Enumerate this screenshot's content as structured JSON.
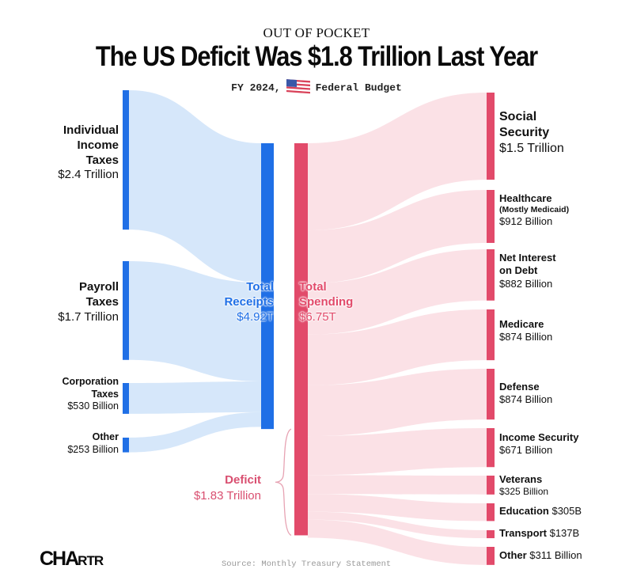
{
  "header": {
    "kicker": "OUT OF POCKET",
    "title": "The US Deficit Was $1.8 Trillion Last Year",
    "subtitle_left": "FY 2024,",
    "flag_icon": "us-flag-icon",
    "subtitle_right": "Federal Budget"
  },
  "footer": {
    "logo_big": "CHA",
    "logo_small": "RTR",
    "source": "Source: Monthly Treasury Statement"
  },
  "colors": {
    "receipts": "#1f6fe6",
    "receipts_flow": "#d6e7fa",
    "spending": "#e24a6a",
    "spending_flow": "#fbe1e6",
    "deficit_text": "#d94f70"
  },
  "chart_data": {
    "type": "sankey",
    "title": "The US Deficit Was $1.8 Trillion Last Year",
    "subtitle": "FY 2024, Federal Budget",
    "units": "billions USD",
    "receipts": {
      "name_lines": [
        "Total",
        "Receipts"
      ],
      "label": "$4.92T",
      "total": 4920,
      "sources": [
        {
          "name_lines": [
            "Individual",
            "Income",
            "Taxes"
          ],
          "label": "$2.4 Trillion",
          "value": 2400
        },
        {
          "name_lines": [
            "Payroll",
            "Taxes"
          ],
          "label": "$1.7 Trillion",
          "value": 1700
        },
        {
          "name_lines": [
            "Corporation",
            "Taxes"
          ],
          "label": "$530 Billion",
          "value": 530
        },
        {
          "name_lines": [
            "Other"
          ],
          "label": "$253 Billion",
          "value": 253
        }
      ]
    },
    "spending": {
      "name_lines": [
        "Total",
        "Spending"
      ],
      "label": "$6.75T",
      "total": 6750,
      "categories": [
        {
          "name_lines": [
            "Social",
            "Security"
          ],
          "label": "$1.5 Trillion",
          "value": 1500,
          "style": "large"
        },
        {
          "name_lines": [
            "Healthcare"
          ],
          "note": "(Mostly Medicaid)",
          "label": "$912 Billion",
          "value": 912
        },
        {
          "name_lines": [
            "Net Interest",
            "on Debt"
          ],
          "label": "$882 Billion",
          "value": 882
        },
        {
          "name_lines": [
            "Medicare"
          ],
          "label": "$874 Billion",
          "value": 874
        },
        {
          "name_lines": [
            "Defense"
          ],
          "label": "$874 Billion",
          "value": 874
        },
        {
          "name_lines": [
            "Income Security"
          ],
          "label": "$671 Billion",
          "value": 671
        },
        {
          "name_lines": [
            "Veterans"
          ],
          "label": "$325 Billion",
          "value": 325,
          "style": "small"
        },
        {
          "name_lines": [
            "Education"
          ],
          "label": "$305B",
          "value": 305,
          "inline": true
        },
        {
          "name_lines": [
            "Transport"
          ],
          "label": "$137B",
          "value": 137,
          "inline": true
        },
        {
          "name_lines": [
            "Other"
          ],
          "label": "$311 Billion",
          "value": 311,
          "inline": true
        }
      ]
    },
    "deficit": {
      "name": "Deficit",
      "label": "$1.83 Trillion",
      "value": 1830
    }
  }
}
